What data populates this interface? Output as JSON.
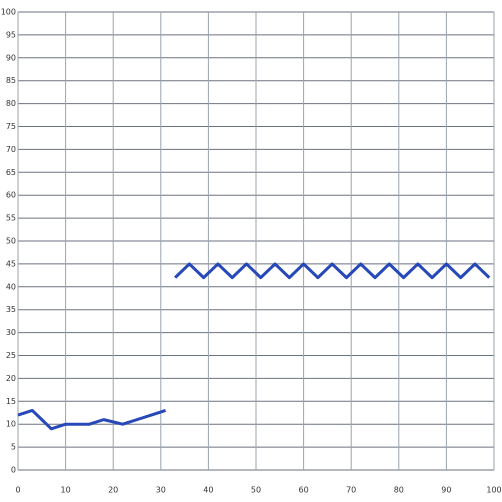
{
  "chart_data": {
    "type": "line",
    "xlim": [
      0,
      100
    ],
    "xticks": [
      0,
      10,
      20,
      30,
      40,
      50,
      60,
      70,
      80,
      90,
      100
    ],
    "ylim": [
      0,
      100
    ],
    "yticks": [
      0,
      5,
      10,
      15,
      20,
      25,
      30,
      35,
      40,
      45,
      50,
      55,
      60,
      65,
      70,
      75,
      80,
      85,
      90,
      95,
      100
    ],
    "grid": true,
    "series": [
      {
        "color": "#2748b8",
        "x": [
          0,
          3,
          5,
          7,
          10,
          15,
          18,
          22,
          25,
          28,
          31
        ],
        "values": [
          12,
          13,
          11,
          9,
          10,
          10,
          11,
          10,
          11,
          12,
          13
        ]
      },
      {
        "color": "#2748b8",
        "x": [
          33,
          36,
          39,
          42,
          45,
          48,
          51,
          54,
          57,
          60,
          63,
          66,
          69,
          72,
          75,
          78,
          81,
          84,
          87,
          90,
          93,
          96,
          99
        ],
        "values": [
          42,
          45,
          42,
          45,
          42,
          45,
          42,
          45,
          42,
          45,
          42,
          45,
          42,
          45,
          42,
          45,
          42,
          45,
          42,
          45,
          42,
          45,
          42
        ]
      }
    ]
  }
}
